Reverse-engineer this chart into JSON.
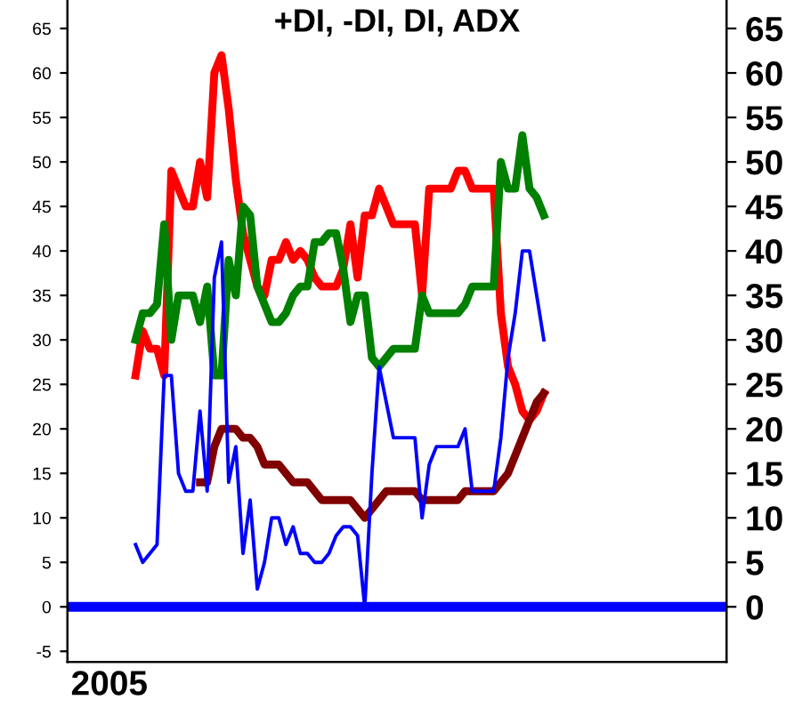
{
  "chart_data": {
    "type": "line",
    "title": "+DI, -DI, DI, ADX",
    "categories": [
      null,
      null,
      null,
      null,
      null,
      null,
      null,
      null,
      null,
      null,
      null,
      null,
      null,
      null,
      null,
      null,
      null,
      null,
      null,
      null,
      null,
      null,
      null,
      null,
      null,
      null,
      null,
      null,
      null,
      null,
      null,
      null,
      null,
      null,
      null,
      null,
      null,
      null,
      null,
      null,
      null,
      null,
      null,
      null,
      null,
      null,
      null,
      null,
      null,
      null,
      null,
      null,
      null,
      null,
      null,
      null,
      null,
      null,
      null,
      null,
      null,
      null,
      null,
      null,
      null,
      null,
      null,
      null,
      null,
      null,
      null,
      null,
      null,
      null,
      null,
      null,
      null,
      null,
      null,
      null,
      null,
      null,
      null,
      null,
      null,
      null,
      null,
      null,
      null,
      null,
      null,
      null
    ],
    "annotations": [
      "2005"
    ],
    "legend": false,
    "grid": false,
    "ylim": [
      -6.2,
      68.2
    ],
    "yticks": [
      -5,
      0,
      5,
      10,
      15,
      20,
      25,
      30,
      35,
      40,
      45,
      50,
      55,
      60,
      65
    ],
    "y2lim": [
      -6.2,
      68.2
    ],
    "y2ticks": [
      0,
      5,
      10,
      15,
      20,
      25,
      30,
      35,
      40,
      45,
      50,
      55,
      60,
      65
    ],
    "ref_lines": [
      {
        "axis": "y",
        "value": 0,
        "color": "#0000ff"
      }
    ],
    "series": [
      {
        "color": "#ff0000",
        "values": [
          null,
          null,
          null,
          null,
          null,
          null,
          null,
          null,
          null,
          26,
          31,
          29,
          29,
          26,
          49,
          47,
          45,
          45,
          50,
          46,
          60,
          62,
          56,
          48,
          42,
          39,
          36,
          35,
          39,
          39,
          41,
          39,
          40,
          39,
          37,
          36,
          36,
          36,
          38,
          43,
          37,
          44,
          44,
          47,
          45,
          43,
          43,
          43,
          43,
          35,
          47,
          47,
          47,
          47,
          49,
          49,
          47,
          47,
          47,
          47,
          33,
          27,
          25,
          22,
          21,
          22,
          24,
          null,
          null,
          null,
          null,
          null,
          null,
          null,
          null,
          null,
          null,
          null,
          null,
          null,
          null,
          null,
          null,
          null,
          null,
          null,
          null,
          null,
          null,
          null,
          null,
          null
        ]
      },
      {
        "color": "#008000",
        "values": [
          null,
          null,
          null,
          null,
          null,
          null,
          null,
          null,
          null,
          30,
          33,
          33,
          34,
          43,
          30,
          35,
          35,
          35,
          32,
          36,
          26,
          26,
          39,
          35,
          45,
          44,
          36,
          34,
          32,
          32,
          33,
          35,
          36,
          36,
          41,
          41,
          42,
          42,
          38,
          32,
          35,
          35,
          28,
          27,
          28,
          29,
          29,
          29,
          29,
          35,
          33,
          33,
          33,
          33,
          33,
          34,
          36,
          36,
          36,
          36,
          50,
          47,
          47,
          53,
          47,
          46,
          44,
          null,
          null,
          null,
          null,
          null,
          null,
          null,
          null,
          null,
          null,
          null,
          null,
          null,
          null,
          null,
          null,
          null,
          null,
          null,
          null,
          null,
          null,
          null,
          null,
          null
        ]
      },
      {
        "color": "#0000ff",
        "values": [
          null,
          null,
          null,
          null,
          null,
          null,
          null,
          null,
          null,
          7,
          5,
          6,
          7,
          26,
          26,
          15,
          13,
          13,
          22,
          13,
          37,
          41,
          14,
          18,
          6,
          12,
          2,
          5,
          10,
          10,
          7,
          9,
          6,
          6,
          5,
          5,
          6,
          8,
          9,
          9,
          8,
          0,
          15,
          27,
          23,
          19,
          19,
          19,
          19,
          10,
          16,
          18,
          18,
          18,
          18,
          20,
          13,
          13,
          13,
          13,
          19,
          28,
          33,
          40,
          40,
          35,
          30,
          null,
          null,
          null,
          null,
          null,
          null,
          null,
          null,
          null,
          null,
          null,
          null,
          null,
          null,
          null,
          null,
          null,
          null,
          null,
          null,
          null,
          null,
          null,
          null,
          null
        ]
      },
      {
        "color": "#800000",
        "values": [
          null,
          null,
          null,
          null,
          null,
          null,
          null,
          null,
          null,
          null,
          null,
          null,
          null,
          null,
          null,
          null,
          null,
          null,
          14,
          14,
          18,
          20,
          20,
          20,
          19,
          19,
          18,
          16,
          16,
          16,
          15,
          14,
          14,
          14,
          13,
          12,
          12,
          12,
          12,
          12,
          11,
          10,
          11,
          12,
          13,
          13,
          13,
          13,
          13,
          12,
          12,
          12,
          12,
          12,
          12,
          13,
          13,
          13,
          13,
          13,
          14,
          15,
          17,
          19,
          21,
          23,
          24,
          null,
          null,
          null,
          null,
          null,
          null,
          null,
          null,
          null,
          null,
          null,
          null,
          null,
          null,
          null,
          null,
          null,
          null,
          null,
          null,
          null,
          null,
          null,
          null,
          null
        ]
      }
    ]
  }
}
